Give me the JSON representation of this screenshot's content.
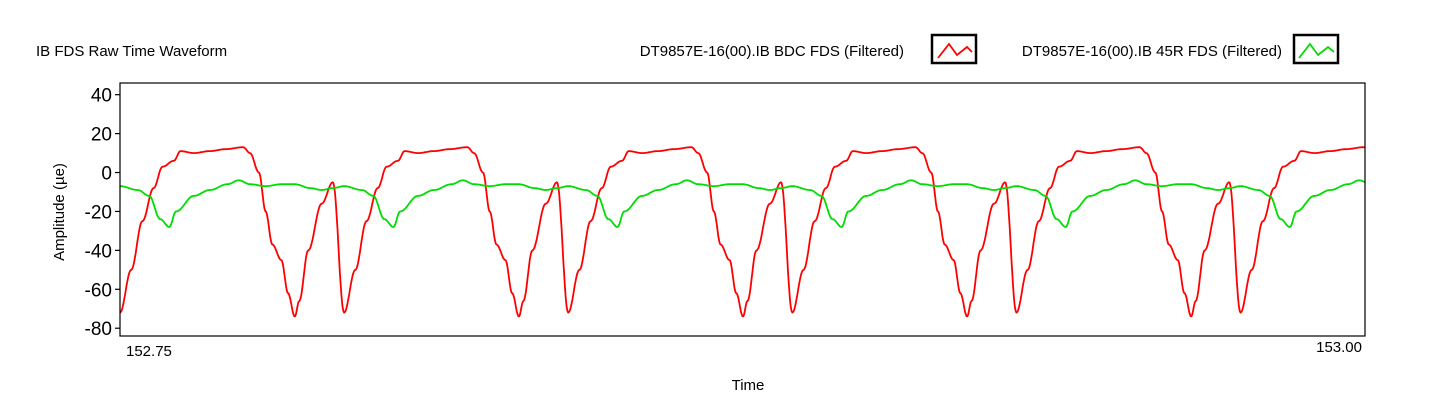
{
  "chart_data": {
    "type": "line",
    "title": "IB FDS Raw Time Waveform",
    "xlabel": "Time",
    "ylabel": "Amplitude (µe)",
    "xlim": [
      152.75,
      153.0
    ],
    "ylim": [
      -84,
      46
    ],
    "y_ticks": [
      40,
      20,
      0,
      -20,
      -40,
      -60,
      -80
    ],
    "y_tick_labels": [
      "40",
      "20",
      "0",
      "-20",
      "-40",
      "-60",
      "-80"
    ],
    "x_tick_labels": [
      "152.75",
      "153.00"
    ],
    "grid": false,
    "legend_position": "top",
    "cycle_count": 5.55,
    "series": [
      {
        "name": "DT9857E-16(00).IB BDC FDS (Filtered)",
        "color": "#ff0000",
        "cycle_start": 152.75,
        "cycle_period": 0.045,
        "cycle_phase": [
          0.0,
          0.05,
          0.1,
          0.15,
          0.19,
          0.24,
          0.27,
          0.33,
          0.4,
          0.47,
          0.55,
          0.58,
          0.62,
          0.65,
          0.68,
          0.72,
          0.75,
          0.78,
          0.8,
          0.84,
          0.9,
          0.95,
          1.0
        ],
        "cycle_values": [
          -72,
          -50,
          -25,
          -8,
          3,
          6,
          11,
          10,
          11,
          12,
          13,
          10,
          0,
          -20,
          -37,
          -45,
          -62,
          -74,
          -66,
          -40,
          -16,
          -5,
          -72
        ]
      },
      {
        "name": "DT9857E-16(00).IB 45R FDS (Filtered)",
        "color": "#00dd00",
        "cycle_start": 152.75,
        "cycle_period": 0.045,
        "cycle_phase": [
          0.0,
          0.08,
          0.13,
          0.18,
          0.22,
          0.25,
          0.33,
          0.4,
          0.48,
          0.53,
          0.58,
          0.65,
          0.72,
          0.78,
          0.85,
          0.9,
          0.95,
          1.0
        ],
        "cycle_values": [
          -7,
          -9,
          -12,
          -24,
          -28,
          -20,
          -12,
          -9,
          -6,
          -4,
          -6,
          -7,
          -6,
          -6,
          -8,
          -9,
          -8,
          -7
        ]
      }
    ]
  }
}
